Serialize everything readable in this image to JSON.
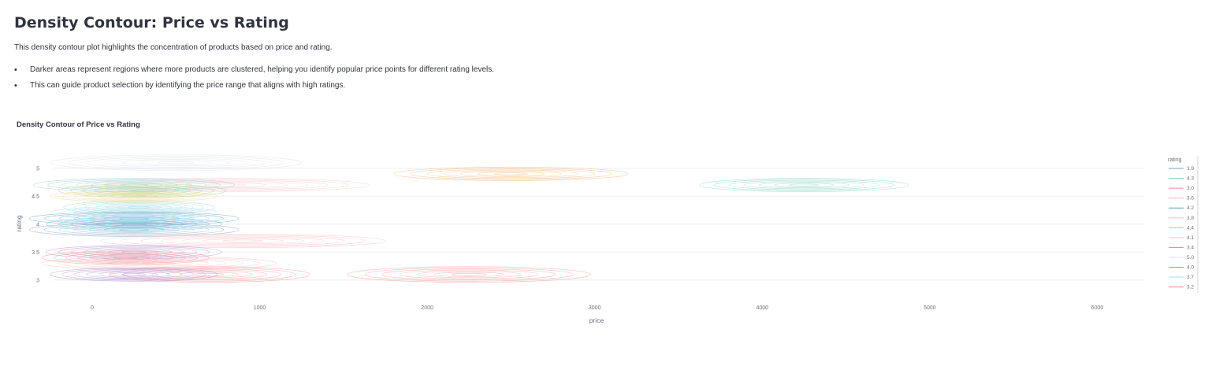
{
  "page": {
    "title": "Density Contour: Price vs Rating",
    "description": "This density contour plot highlights the concentration of products based on price and rating.",
    "bullets": [
      "Darker areas represent regions where more products are clustered, helping you identify popular price points for different rating levels.",
      "This can guide product selection by identifying the price range that aligns with high ratings."
    ]
  },
  "chart_data": {
    "type": "density_contour",
    "title": "Density Contour of Price vs Rating",
    "xlabel": "price",
    "ylabel": "rating",
    "xlim": [
      -230,
      6280
    ],
    "ylim": [
      2.8,
      5.25
    ],
    "x_ticks": [
      0,
      1000,
      2000,
      3000,
      4000,
      5000,
      6000
    ],
    "y_ticks": [
      3,
      3.5,
      4,
      4.5,
      5
    ],
    "y_tick_labels": [
      "3",
      "3.5",
      "4",
      "4.5",
      "5"
    ],
    "grid": "horizontal",
    "legend_title": "rating",
    "legend_position": "right",
    "series": [
      {
        "name": "3.9",
        "color": "#7f9fc4",
        "clusters": [
          {
            "cx": 250,
            "cy": 3.9,
            "sx": 1250,
            "sy": 0.06
          }
        ]
      },
      {
        "name": "4.3",
        "color": "#8fd3cf",
        "clusters": [
          {
            "cx": 280,
            "cy": 4.3,
            "sx": 900,
            "sy": 0.06
          }
        ]
      },
      {
        "name": "3.0",
        "color": "#f28e8e",
        "clusters": [
          {
            "cx": 700,
            "cy": 3.1,
            "sx": 1200,
            "sy": 0.07
          },
          {
            "cx": 2250,
            "cy": 3.1,
            "sx": 1450,
            "sy": 0.07
          }
        ]
      },
      {
        "name": "3.6",
        "color": "#f7b9bf",
        "clusters": [
          {
            "cx": 400,
            "cy": 3.3,
            "sx": 1400,
            "sy": 0.06
          },
          {
            "cx": 900,
            "cy": 3.7,
            "sx": 1700,
            "sy": 0.06
          }
        ]
      },
      {
        "name": "4.2",
        "color": "#5f9ec9",
        "clusters": [
          {
            "cx": 250,
            "cy": 4.1,
            "sx": 1250,
            "sy": 0.06
          }
        ]
      },
      {
        "name": "3.8",
        "color": "#f6c3c8",
        "clusters": [
          {
            "cx": 800,
            "cy": 4.7,
            "sx": 1700,
            "sy": 0.06
          }
        ]
      },
      {
        "name": "4.4",
        "color": "#f5b26b",
        "clusters": [
          {
            "cx": 2500,
            "cy": 4.9,
            "sx": 1400,
            "sy": 0.06
          }
        ]
      },
      {
        "name": "4.1",
        "color": "#f7d27a",
        "clusters": [
          {
            "cx": 250,
            "cy": 4.5,
            "sx": 1000,
            "sy": 0.05
          }
        ]
      },
      {
        "name": "3.4",
        "color": "#b18ad0",
        "clusters": [
          {
            "cx": 250,
            "cy": 3.5,
            "sx": 1050,
            "sy": 0.06
          }
        ]
      },
      {
        "name": "5.0",
        "color": "#dde0ea",
        "clusters": [
          {
            "cx": 500,
            "cy": 5.1,
            "sx": 1500,
            "sy": 0.07
          }
        ]
      },
      {
        "name": "4.0",
        "color": "#4fb7d3",
        "clusters": [
          {
            "cx": 250,
            "cy": 4.0,
            "sx": 1050,
            "sy": 0.06
          }
        ]
      },
      {
        "name": "3.7",
        "color": "#a6dbf0",
        "clusters": [
          {
            "cx": 250,
            "cy": 4.2,
            "sx": 1000,
            "sy": 0.06
          }
        ]
      },
      {
        "name": "3.2",
        "color": "#f2837f",
        "clusters": [
          {
            "cx": 200,
            "cy": 3.4,
            "sx": 1000,
            "sy": 0.06
          }
        ]
      }
    ],
    "extra_clusters": [
      {
        "color": "#7fd1c0",
        "cx": 4250,
        "cy": 4.7,
        "sx": 1250,
        "sy": 0.06
      },
      {
        "color": "#8fcbcf",
        "cx": 250,
        "cy": 4.7,
        "sx": 1200,
        "sy": 0.06
      },
      {
        "color": "#a7cf80",
        "cx": 300,
        "cy": 4.6,
        "sx": 1000,
        "sy": 0.06
      },
      {
        "color": "#a686cf",
        "cx": 250,
        "cy": 3.1,
        "sx": 1000,
        "sy": 0.06
      }
    ]
  }
}
